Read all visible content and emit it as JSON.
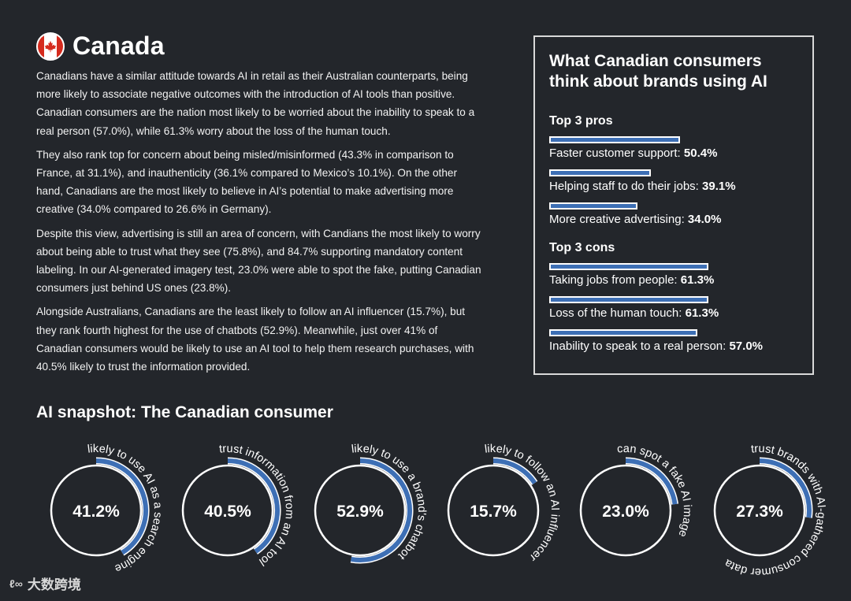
{
  "header": {
    "title": "Canada",
    "flag_icon": "canada-flag-icon"
  },
  "intro_paragraphs": [
    "Canadians have a similar attitude towards AI in retail as their Australian counterparts, being more likely to associate negative outcomes with the introduction of AI tools than positive. Canadian consumers are the nation most likely to be worried about the inability to speak to a real person (57.0%), while 61.3% worry about the loss of the human touch.",
    "They also rank top for concern about being misled/misinformed (43.3% in comparison to France, at 31.1%), and inauthenticity (36.1% compared to Mexico’s 10.1%). On the other hand, Canadians are the most likely to believe in AI’s potential to make advertising more creative (34.0% compared to 26.6% in Germany).",
    "Despite this view, advertising is still an area of concern, with Candians the most likely to worry about being able to trust what they see (75.8%), and 84.7% supporting mandatory content labeling. In our AI-generated imagery test, 23.0% were able to spot the fake, putting Canadian consumers just behind US ones (23.8%).",
    "Alongside Australians, Canadians are the least likely to follow an AI influencer (15.7%), but they rank fourth highest for the use of chatbots (52.9%). Meanwhile, just over 41% of Canadian consumers would be likely to use an AI tool to help them research purchases, with 40.5% likely to trust the information provided."
  ],
  "sidebox": {
    "title": "What Canadian consumers think about brands using AI",
    "pros_heading": "Top 3 pros",
    "pros": [
      {
        "label": "Faster customer support: ",
        "value": "50.4%",
        "pct": 50.4
      },
      {
        "label": "Helping staff to do their jobs: ",
        "value": "39.1%",
        "pct": 39.1
      },
      {
        "label": "More creative advertising: ",
        "value": "34.0%",
        "pct": 34.0
      }
    ],
    "cons_heading": "Top 3 cons",
    "cons": [
      {
        "label": "Taking jobs from people: ",
        "value": "61.3%",
        "pct": 61.3
      },
      {
        "label": "Loss of the human touch: ",
        "value": "61.3%",
        "pct": 61.3
      },
      {
        "label": "Inability to speak to a real person: ",
        "value": "57.0%",
        "pct": 57.0
      }
    ]
  },
  "snapshot": {
    "title": "AI snapshot: The Canadian consumer",
    "items": [
      {
        "value": "41.2%",
        "pct": 41.2,
        "label": "likely to use AI as a search engine"
      },
      {
        "value": "40.5%",
        "pct": 40.5,
        "label": "trust information from an AI tool"
      },
      {
        "value": "52.9%",
        "pct": 52.9,
        "label": "likely to use a brand's chatbot"
      },
      {
        "value": "15.7%",
        "pct": 15.7,
        "label": "likely to follow an AI influencer"
      },
      {
        "value": "23.0%",
        "pct": 23.0,
        "label": "can spot a fake AI image"
      },
      {
        "value": "27.3%",
        "pct": 27.3,
        "label": "trust brands with AI-gathered consumer data"
      }
    ]
  },
  "watermark": {
    "text": "大数跨境",
    "icon": "brand-logo-icon"
  },
  "colors": {
    "background": "#23262b",
    "accent": "#3d6fb5",
    "text": "#ffffff"
  }
}
